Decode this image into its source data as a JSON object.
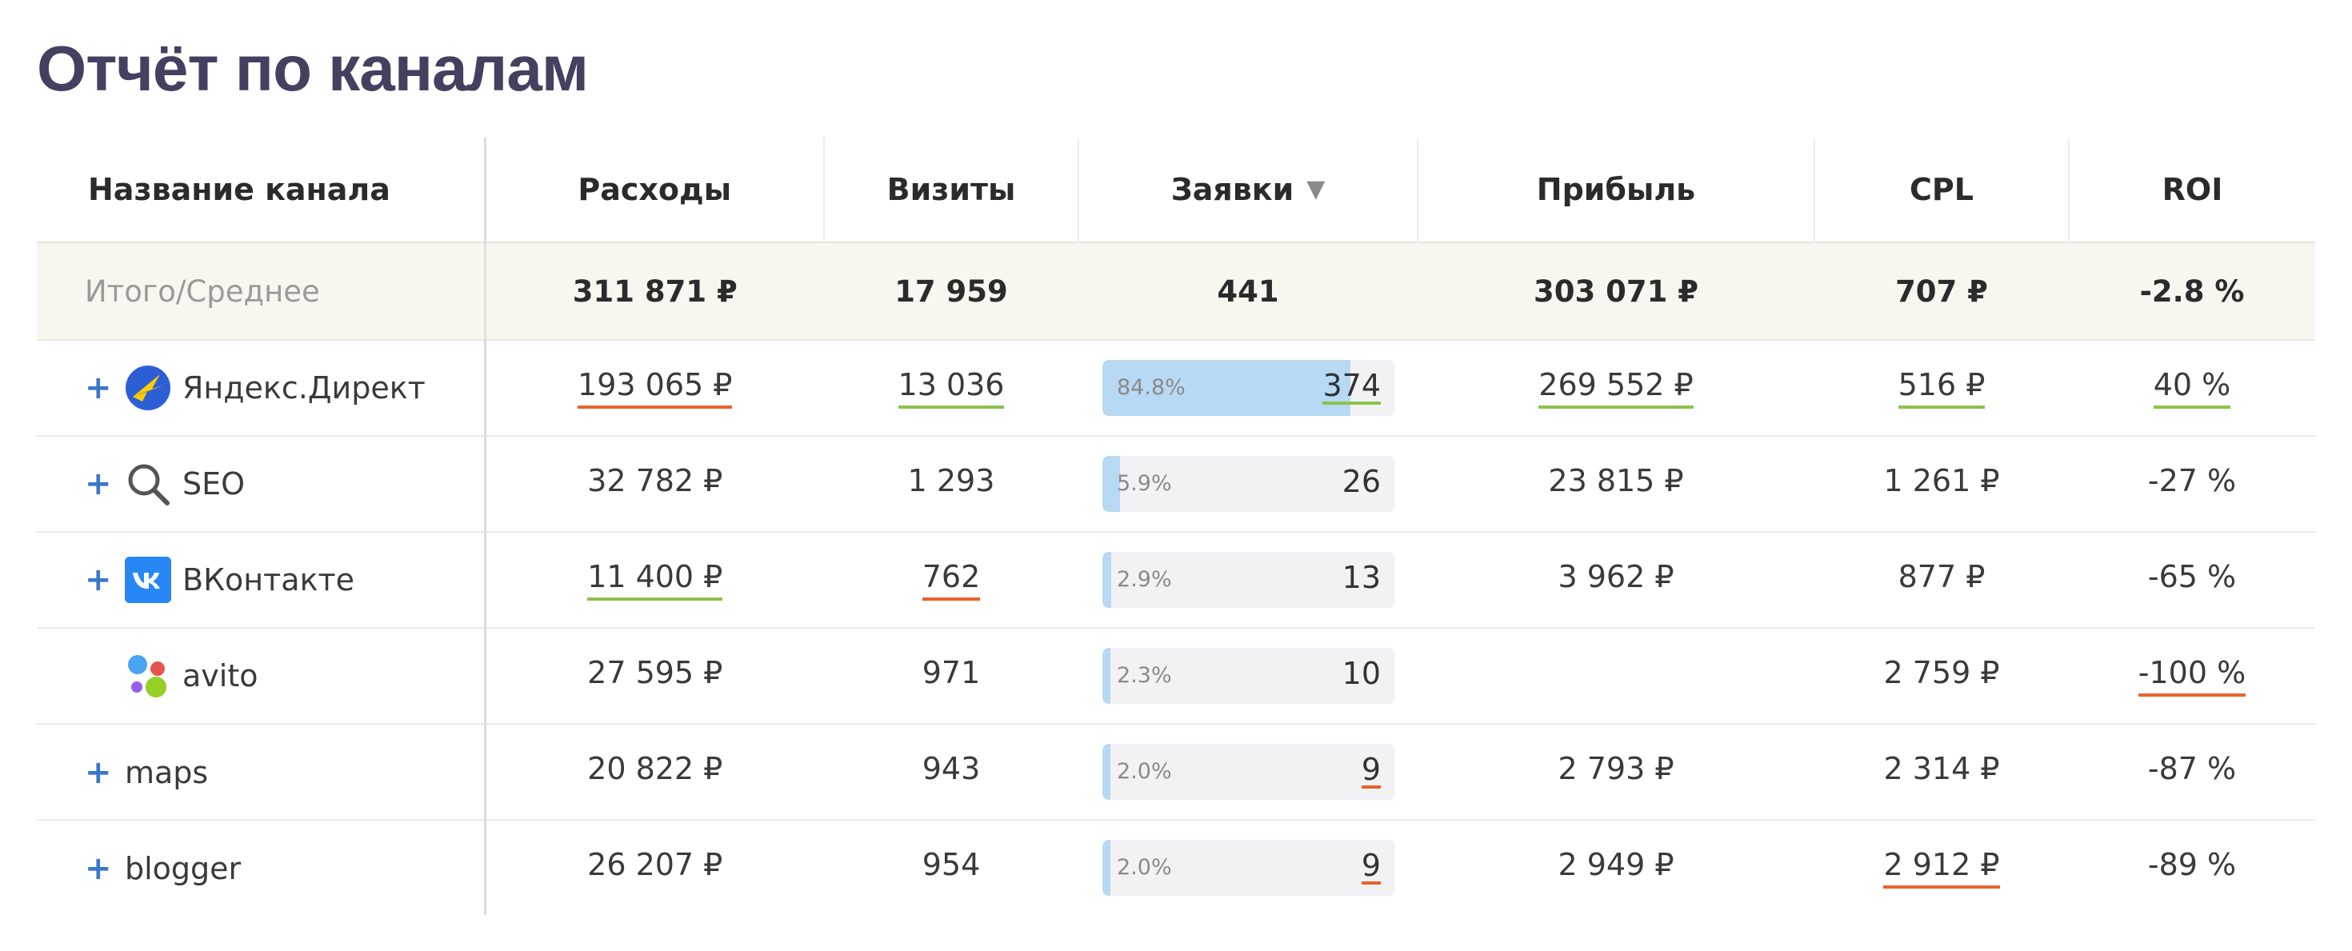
{
  "page_title": "Отчёт по каналам",
  "columns": {
    "name": "Название канала",
    "cost": "Расходы",
    "visits": "Визиты",
    "leads": "Заявки",
    "profit": "Прибыль",
    "cpl": "CPL",
    "roi": "ROI"
  },
  "sort_indicator": "▼",
  "totals": {
    "label": "Итого/Среднее",
    "cost": "311 871 ₽",
    "visits": "17 959",
    "leads": "441",
    "profit": "303 071 ₽",
    "cpl": "707 ₽",
    "roi": "-2.8 %"
  },
  "expand_symbol": "+",
  "colors": {
    "accent_blue": "#3a78c8",
    "bar_fill": "#b8d9f3",
    "underline_green": "#8bc34a",
    "underline_orange": "#e8632a",
    "total_row_bg": "#f8f6ee",
    "title": "#434060"
  },
  "rows": [
    {
      "name": "Яндекс.Директ",
      "icon": "yandex-direct-icon",
      "expandable": true,
      "cost": "193 065 ₽",
      "cost_mark": "orange",
      "visits": "13 036",
      "visits_mark": "green",
      "leads_pct": "84.8%",
      "leads_fraction": 0.848,
      "leads": "374",
      "leads_mark": "green",
      "profit": "269 552 ₽",
      "profit_mark": "green",
      "cpl": "516 ₽",
      "cpl_mark": "green",
      "roi": "40 %",
      "roi_mark": "green"
    },
    {
      "name": "SEO",
      "icon": "search-icon",
      "expandable": true,
      "cost": "32 782 ₽",
      "cost_mark": "",
      "visits": "1 293",
      "visits_mark": "",
      "leads_pct": "5.9%",
      "leads_fraction": 0.059,
      "leads": "26",
      "leads_mark": "",
      "profit": "23 815 ₽",
      "profit_mark": "",
      "cpl": "1 261 ₽",
      "cpl_mark": "",
      "roi": "-27 %",
      "roi_mark": ""
    },
    {
      "name": "ВКонтакте",
      "icon": "vk-icon",
      "expandable": true,
      "cost": "11 400 ₽",
      "cost_mark": "green",
      "visits": "762",
      "visits_mark": "orange",
      "leads_pct": "2.9%",
      "leads_fraction": 0.029,
      "leads": "13",
      "leads_mark": "",
      "profit": "3 962 ₽",
      "profit_mark": "",
      "cpl": "877 ₽",
      "cpl_mark": "",
      "roi": "-65 %",
      "roi_mark": ""
    },
    {
      "name": "avito",
      "icon": "avito-icon",
      "expandable": false,
      "cost": "27 595 ₽",
      "cost_mark": "",
      "visits": "971",
      "visits_mark": "",
      "leads_pct": "2.3%",
      "leads_fraction": 0.023,
      "leads": "10",
      "leads_mark": "",
      "profit": "",
      "profit_mark": "",
      "cpl": "2 759 ₽",
      "cpl_mark": "",
      "roi": "-100 %",
      "roi_mark": "orange"
    },
    {
      "name": "maps",
      "icon": "",
      "expandable": true,
      "cost": "20 822 ₽",
      "cost_mark": "",
      "visits": "943",
      "visits_mark": "",
      "leads_pct": "2.0%",
      "leads_fraction": 0.02,
      "leads": "9",
      "leads_mark": "orange",
      "profit": "2 793 ₽",
      "profit_mark": "",
      "cpl": "2 314 ₽",
      "cpl_mark": "",
      "roi": "-87 %",
      "roi_mark": ""
    },
    {
      "name": "blogger",
      "icon": "",
      "expandable": true,
      "cost": "26 207 ₽",
      "cost_mark": "",
      "visits": "954",
      "visits_mark": "",
      "leads_pct": "2.0%",
      "leads_fraction": 0.02,
      "leads": "9",
      "leads_mark": "orange",
      "profit": "2 949 ₽",
      "profit_mark": "",
      "cpl": "2 912 ₽",
      "cpl_mark": "orange",
      "roi": "-89 %",
      "roi_mark": ""
    }
  ]
}
